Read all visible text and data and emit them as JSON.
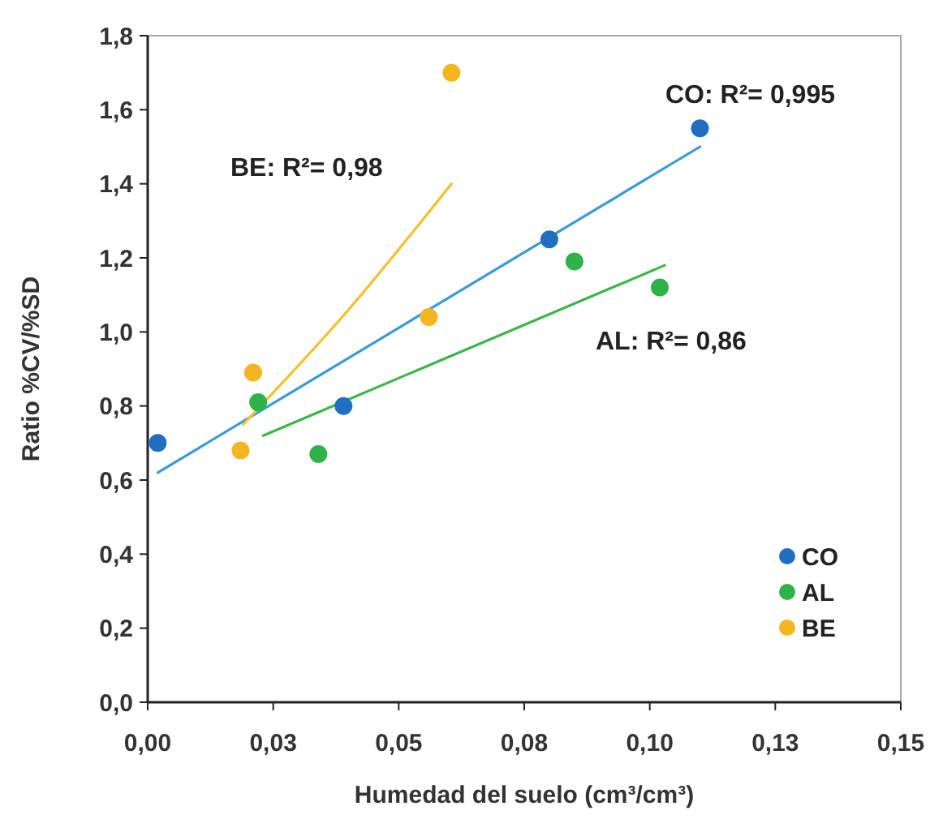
{
  "chart_data": {
    "type": "scatter",
    "xlabel": "Humedad del suelo (cm³/cm³)",
    "ylabel": "Ratio %CV/%SD",
    "xlim": [
      0,
      0.15
    ],
    "xticks": [
      {
        "value": 0,
        "label": "0,00"
      },
      {
        "value": 0.025,
        "label": "0,03"
      },
      {
        "value": 0.05,
        "label": "0,05"
      },
      {
        "value": 0.075,
        "label": "0,08"
      },
      {
        "value": 0.1,
        "label": "0,10"
      },
      {
        "value": 0.125,
        "label": "0,13"
      },
      {
        "value": 0.15,
        "label": "0,15"
      }
    ],
    "ylim": [
      0,
      1.8
    ],
    "yticks": [
      {
        "value": 0,
        "label": "0,0"
      },
      {
        "value": 0.2,
        "label": "0,2"
      },
      {
        "value": 0.4,
        "label": "0,4"
      },
      {
        "value": 0.6,
        "label": "0,6"
      },
      {
        "value": 0.8,
        "label": "0,8"
      },
      {
        "value": 1,
        "label": "1,0"
      },
      {
        "value": 1.2,
        "label": "1,2"
      },
      {
        "value": 1.4,
        "label": "1,4"
      },
      {
        "value": 1.6,
        "label": "1,6"
      },
      {
        "value": 1.8,
        "label": "1,8"
      }
    ],
    "grid": false,
    "legend": "bottom right",
    "marker": "circle",
    "series": [
      {
        "type": "line",
        "marker": "none",
        "color": "#3a9ad9",
        "x": [
          0.002,
          0.11
        ],
        "values": [
          0.62,
          1.5
        ]
      },
      {
        "type": "line",
        "marker": "none",
        "color": "#3cb54a",
        "x": [
          0.023,
          0.103
        ],
        "values": [
          0.72,
          1.18
        ]
      },
      {
        "type": "line",
        "marker": "none",
        "color": "#f5c02a",
        "x": [
          0.019,
          0.04,
          0.0605
        ],
        "values": [
          0.75,
          1.06,
          1.4
        ]
      },
      {
        "name": "CO",
        "color": "#1f6fc0",
        "x": [
          0.002,
          0.039,
          0.08,
          0.11
        ],
        "values": [
          0.7,
          0.8,
          1.25,
          1.55
        ]
      },
      {
        "name": "AL",
        "color": "#2db34a",
        "x": [
          0.022,
          0.034,
          0.085,
          0.102
        ],
        "values": [
          0.81,
          0.67,
          1.19,
          1.12
        ]
      },
      {
        "name": "BE",
        "color": "#f5b521",
        "x": [
          0.021,
          0.0185,
          0.056,
          0.0605
        ],
        "values": [
          0.89,
          0.68,
          1.04,
          1.7
        ]
      }
    ],
    "annotations": [
      "CO: R²= 0,995",
      "BE: R²= 0,98",
      "AL: R²= 0,86"
    ]
  }
}
